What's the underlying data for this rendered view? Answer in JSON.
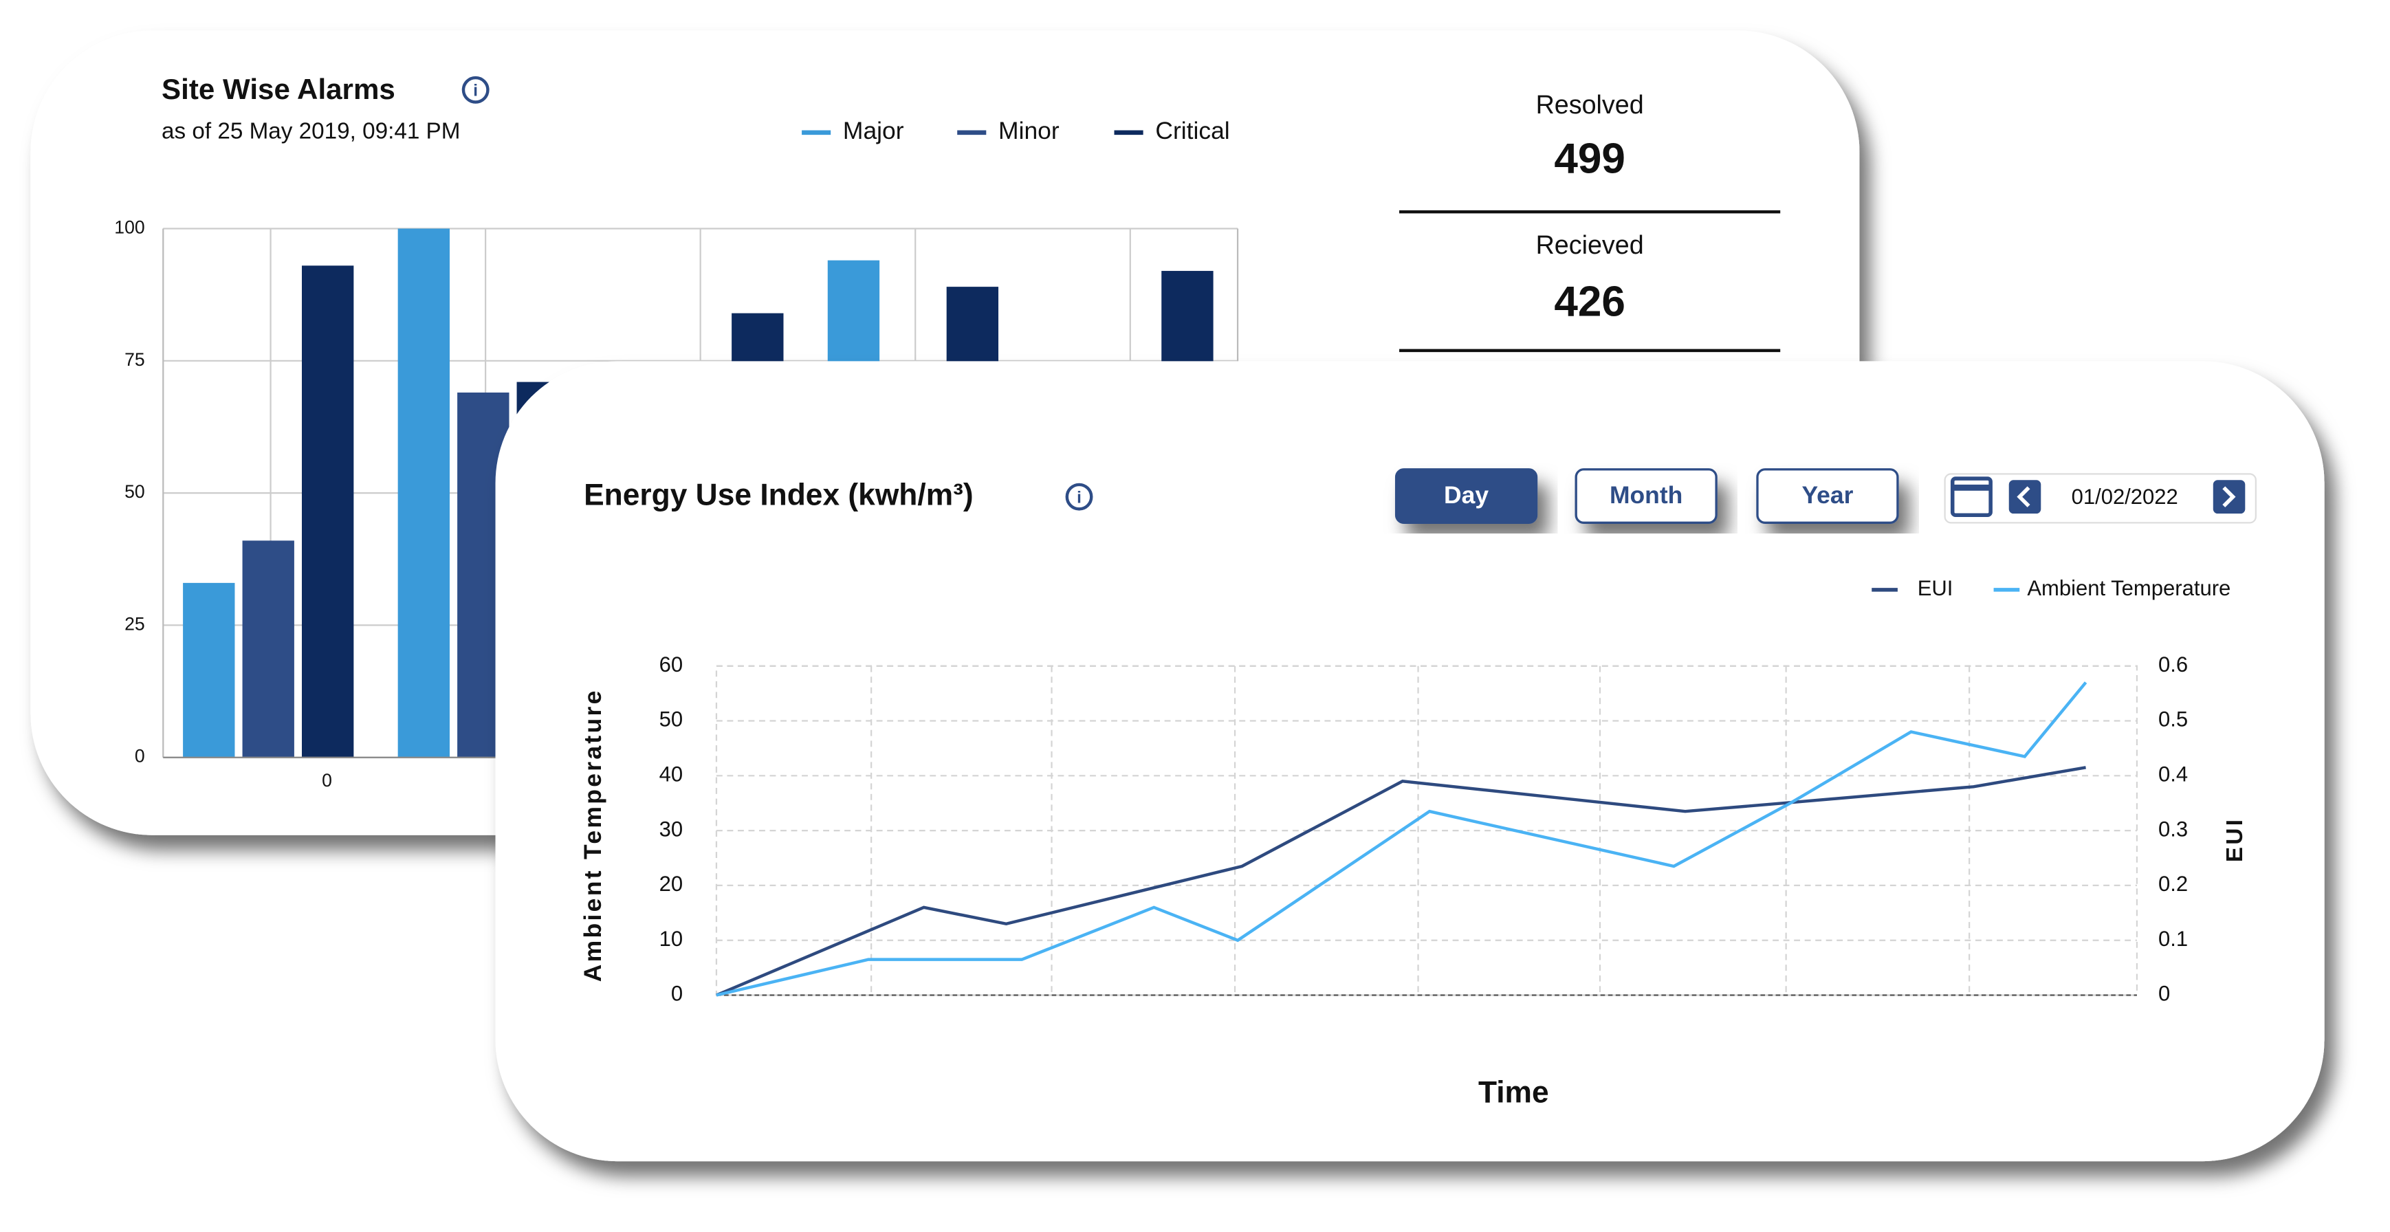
{
  "chart_data": [
    {
      "type": "bar",
      "title": "Site Wise Alarms",
      "subtitle": "as of 25 May 2019, 09:41 PM",
      "categories": [
        "0",
        null,
        null,
        null,
        null
      ],
      "series": [
        {
          "name": "Major",
          "color": "#3a9ad9",
          "values": [
            33,
            100,
            null,
            94,
            null
          ]
        },
        {
          "name": "Minor",
          "color": "#2e4d87",
          "values": [
            41,
            69,
            null,
            null,
            null
          ]
        },
        {
          "name": "Critical",
          "color": "#0d2a5e",
          "values": [
            93,
            71,
            84,
            89,
            92
          ]
        }
      ],
      "ylim": [
        0,
        100
      ],
      "yticks": [
        0,
        25,
        50,
        75,
        100
      ],
      "grid": true,
      "legend": "top"
    },
    {
      "type": "line",
      "title": "Energy Use Index (kwh/m³)",
      "x_label": "Time",
      "y_label": "Ambient Temperature",
      "y2_label": "EUI",
      "series": [
        {
          "name": "EUI",
          "color": "#2e4a7f",
          "axis": "y2",
          "x": [
            0,
            14.6,
            20.4,
            37,
            48.3,
            68.2,
            75.1,
            88.5,
            96.4
          ],
          "values": [
            0,
            0.16,
            0.13,
            0.235,
            0.39,
            0.335,
            0.35,
            0.38,
            0.415
          ]
        },
        {
          "name": "Ambient Temperature",
          "color": "#4ab3f4",
          "x": [
            0,
            10.7,
            21.5,
            30.8,
            36.7,
            50.2,
            67.4,
            75.6,
            84.1,
            92.1,
            96.4
          ],
          "values": [
            0,
            6.5,
            6.5,
            16,
            10,
            33.5,
            23.5,
            35,
            48,
            43.5,
            57
          ]
        }
      ],
      "xlim": [
        0,
        100
      ],
      "xticks": [
        10.9,
        23.6,
        36.5,
        49.4,
        62.2,
        75.3,
        88.2
      ],
      "ylim": [
        0,
        60
      ],
      "yticks": [
        0,
        10,
        20,
        30,
        40,
        50,
        60
      ],
      "y2lim": [
        0,
        0.6
      ],
      "y2ticks": [
        0,
        0.1,
        0.2,
        0.3,
        0.4,
        0.5,
        0.6
      ],
      "grid": true,
      "legend": "top-right"
    }
  ],
  "stats": [
    {
      "label": "Resolved",
      "value": 499
    },
    {
      "label": "Recieved",
      "value": 426
    }
  ],
  "controls": {
    "buttons": [
      "Day",
      "Month",
      "Year"
    ],
    "active": "Day",
    "date": "01/02/2022"
  }
}
